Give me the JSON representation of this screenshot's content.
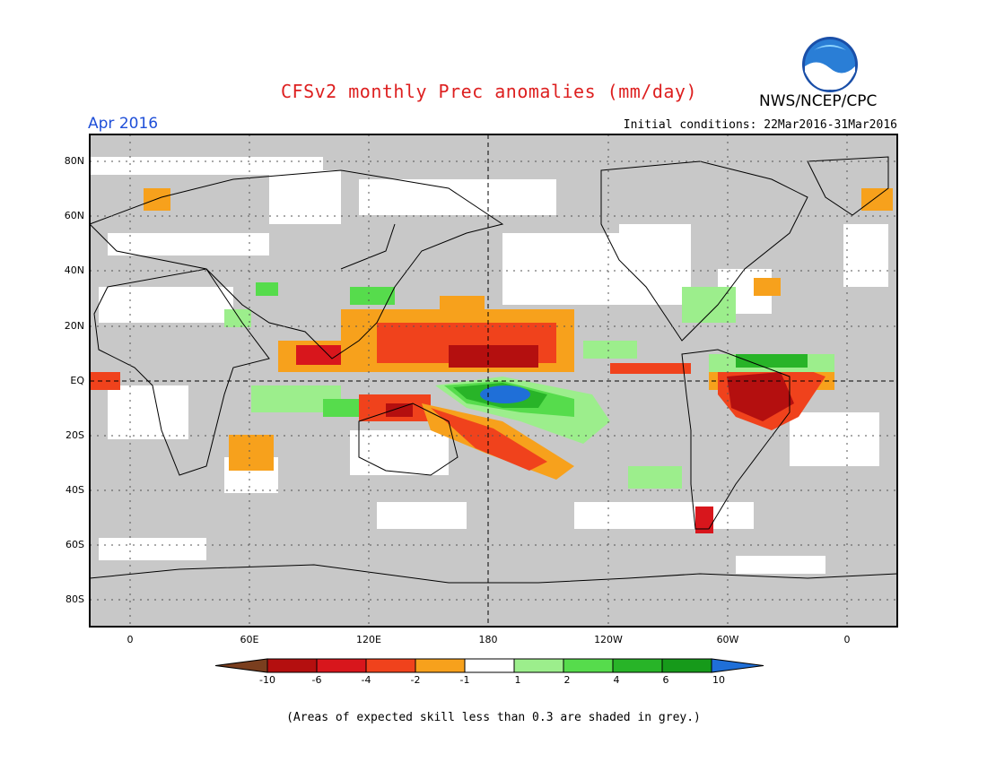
{
  "title": "CFSv2 monthly Prec anomalies (mm/day)",
  "org": "NWS/NCEP/CPC",
  "logo_text": "NOAA",
  "period": "Apr 2016",
  "initial_conditions": "Initial conditions: 22Mar2016-31Mar2016",
  "lat_labels": [
    "80N",
    "60N",
    "40N",
    "20N",
    "EQ",
    "20S",
    "40S",
    "60S",
    "80S"
  ],
  "lon_labels": [
    "0",
    "60E",
    "120E",
    "180",
    "120W",
    "60W",
    "0"
  ],
  "colorbar": {
    "labels": [
      "-10",
      "-6",
      "-4",
      "-2",
      "-1",
      "1",
      "2",
      "4",
      "6",
      "10"
    ],
    "colors": [
      "#7a3e1e",
      "#b40f0f",
      "#d8161c",
      "#f0421c",
      "#f7a11c",
      "#ffffff",
      "#9cee8c",
      "#56dc4c",
      "#28b428",
      "#169a1a",
      "#1f6fd8"
    ]
  },
  "note": "(Areas of expected skill less than 0.3 are shaded in grey.)",
  "colors": {
    "grey": "#c8c8c8",
    "title": "#dd1f1f",
    "period": "#1f4fd8"
  }
}
